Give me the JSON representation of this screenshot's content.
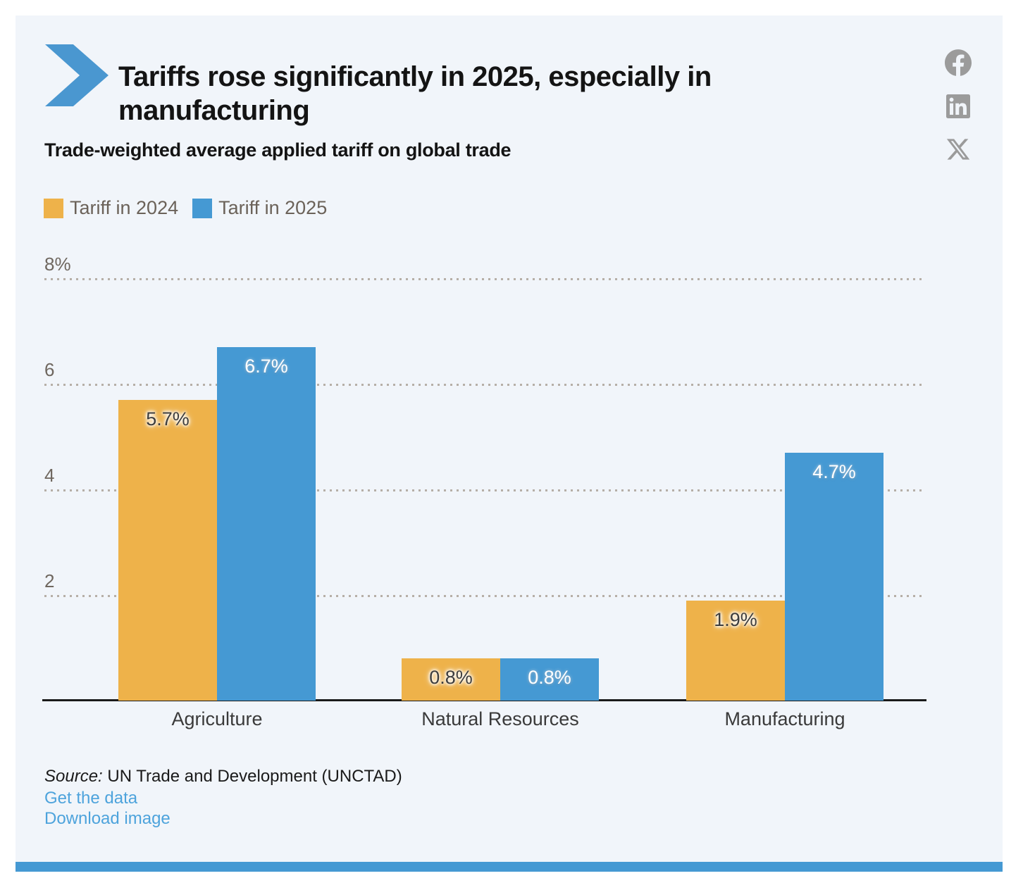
{
  "header": {
    "title": "Tariffs rose significantly in 2025, especially in manufacturing",
    "subtitle": "Trade-weighted average applied tariff on global trade"
  },
  "share": {
    "icons": [
      "facebook-icon",
      "linkedin-icon",
      "x-icon"
    ],
    "icon_color": "#9b9b9b"
  },
  "legend": {
    "items": [
      {
        "label": "Tariff in 2024",
        "color": "#eeb24a"
      },
      {
        "label": "Tariff in 2025",
        "color": "#4599d3"
      }
    ]
  },
  "chart_data": {
    "type": "bar",
    "categories": [
      "Agriculture",
      "Natural Resources",
      "Manufacturing"
    ],
    "series": [
      {
        "name": "Tariff in 2024",
        "color": "#eeb24a",
        "values": [
          5.7,
          0.8,
          1.9
        ],
        "labels": [
          "5.7%",
          "0.8%",
          "1.9%"
        ]
      },
      {
        "name": "Tariff in 2025",
        "color": "#4599d3",
        "values": [
          6.7,
          0.8,
          4.7
        ],
        "labels": [
          "6.7%",
          "0.8%",
          "4.7%"
        ]
      }
    ],
    "title": "Tariffs rose significantly in 2025, especially in manufacturing",
    "xlabel": "",
    "ylabel": "",
    "ylim": [
      0,
      8.6
    ],
    "yticks": [
      {
        "value": 2,
        "label": "2"
      },
      {
        "value": 4,
        "label": "4"
      },
      {
        "value": 6,
        "label": "6"
      },
      {
        "value": 8,
        "label": "8%"
      }
    ],
    "grid": "dotted horizontal",
    "legend_position": "top-left"
  },
  "footer": {
    "source_prefix": "Source:",
    "source_text": " UN Trade and Development (UNCTAD)",
    "links": [
      "Get the data",
      "Download image"
    ],
    "link_color": "#4da3dc"
  },
  "accent": {
    "chevron_color": "#4a97d0",
    "strip_color": "#4599d3",
    "card_background": "#f1f5fa"
  }
}
